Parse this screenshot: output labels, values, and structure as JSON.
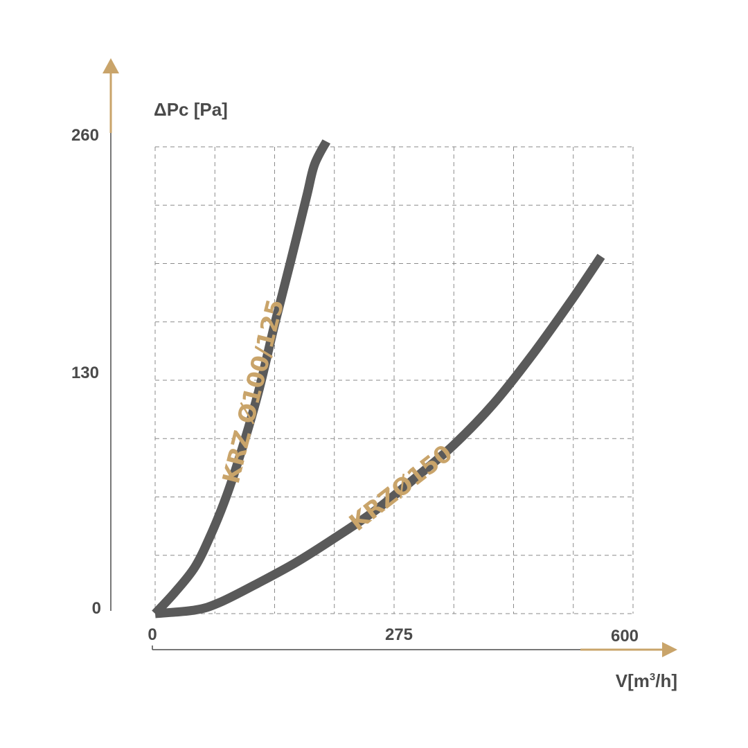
{
  "chart_data": {
    "type": "line",
    "ylabel": "ΔPc [Pa]",
    "xlabel_parts": {
      "prefix": "V[m",
      "sup": "3",
      "suffix": "/h]"
    },
    "x_ticks": [
      "0",
      "275",
      "600"
    ],
    "y_ticks": [
      "0",
      "130",
      "260"
    ],
    "xlim": [
      0,
      600
    ],
    "ylim": [
      0,
      260
    ],
    "grid": true,
    "colors": {
      "curve": "#5a5a5a",
      "accent": "#c9a46a",
      "grid": "#8a8a8a",
      "axis": "#4a4a4a"
    },
    "series": [
      {
        "name": "KRZ Ø100/125",
        "x": [
          0,
          25,
          50,
          70,
          90,
          110,
          130,
          150,
          170,
          190,
          200,
          215
        ],
        "y": [
          0,
          12,
          26,
          44,
          66,
          93,
          124,
          161,
          196,
          232,
          250,
          263
        ]
      },
      {
        "name": "KRZØ150",
        "x": [
          0,
          50,
          80,
          125,
          175,
          225,
          275,
          325,
          375,
          425,
          475,
          525,
          560
        ],
        "y": [
          0,
          2,
          6,
          16,
          28,
          42,
          57,
          75,
          94,
          117,
          145,
          176,
          199
        ]
      }
    ]
  }
}
